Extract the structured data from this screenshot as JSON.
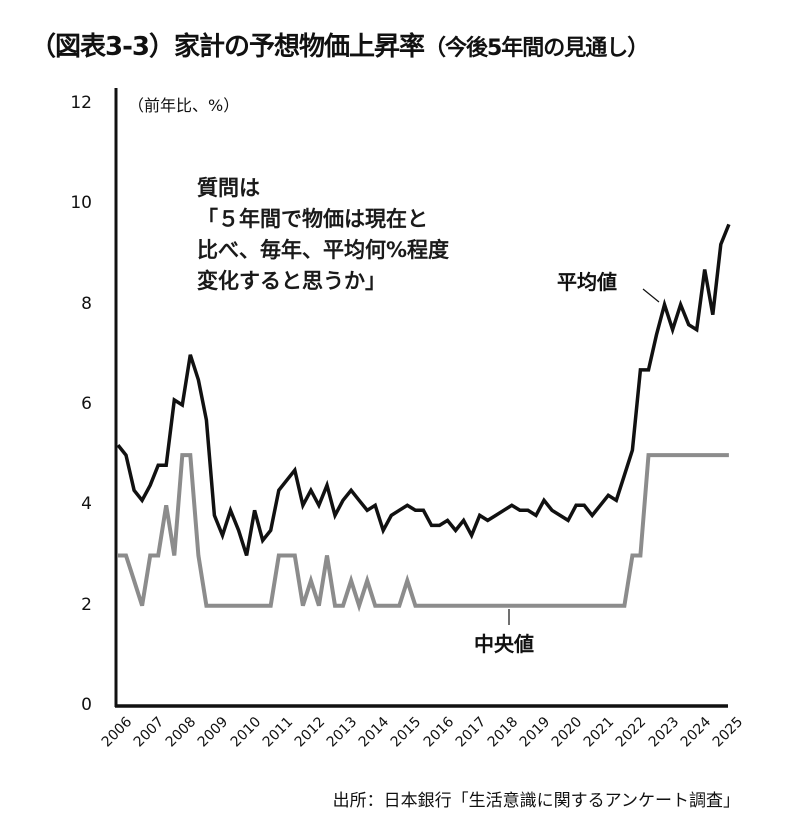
{
  "title": {
    "main": "（図表3-3）家計の予想物価上昇率",
    "sub": "（今後5年間の見通し）"
  },
  "unit_label": "（前年比、%）",
  "annotation": {
    "line1": "質問は",
    "line2": "「５年間で物価は現在と",
    "line3": "比べ、毎年、平均何%程度",
    "line4": "変化すると思うか」"
  },
  "labels": {
    "mean": "平均値",
    "median": "中央値"
  },
  "source": "出所：日本銀行「生活意識に関するアンケート調査」",
  "colors": {
    "mean": "#111111",
    "median": "#8c8c8c",
    "axis": "#111111"
  },
  "chart_data": {
    "type": "line",
    "title": "（図表3-3）家計の予想物価上昇率（今後5年間の見通し）",
    "xlabel": "",
    "ylabel": "（前年比、%）",
    "ylim": [
      0,
      12
    ],
    "yticks": [
      0,
      2,
      4,
      6,
      8,
      10,
      12
    ],
    "xticks": [
      "2006",
      "2007",
      "2008",
      "2009",
      "2010",
      "2011",
      "2012",
      "2013",
      "2014",
      "2015",
      "2016",
      "2017",
      "2018",
      "2019",
      "2020",
      "2021",
      "2022",
      "2023",
      "2024",
      "2025"
    ],
    "frequency": "quarterly",
    "x_start": 2006.0,
    "grid": false,
    "legend": "inline labels",
    "series": [
      {
        "name": "平均値",
        "values": [
          5.2,
          5.0,
          4.3,
          4.1,
          4.4,
          4.8,
          4.8,
          6.1,
          6.0,
          7.0,
          6.5,
          5.7,
          3.8,
          3.4,
          3.9,
          3.5,
          3.0,
          3.9,
          3.3,
          3.5,
          4.3,
          4.5,
          4.7,
          4.0,
          4.3,
          4.0,
          4.4,
          3.8,
          4.1,
          4.3,
          4.1,
          3.9,
          4.0,
          3.5,
          3.8,
          3.9,
          4.0,
          3.9,
          3.9,
          3.6,
          3.6,
          3.7,
          3.5,
          3.7,
          3.4,
          3.8,
          3.7,
          3.8,
          3.9,
          4.0,
          3.9,
          3.9,
          3.8,
          4.1,
          3.9,
          3.8,
          3.7,
          4.0,
          4.0,
          3.8,
          4.0,
          4.2,
          4.1,
          4.6,
          5.1,
          6.7,
          6.7,
          7.4,
          8.0,
          7.5,
          8.0,
          7.6,
          7.5,
          8.7,
          7.8,
          9.2,
          9.6
        ]
      },
      {
        "name": "中央値",
        "values": [
          3.0,
          3.0,
          2.5,
          2.0,
          3.0,
          3.0,
          4.0,
          3.0,
          5.0,
          5.0,
          3.0,
          2.0,
          2.0,
          2.0,
          2.0,
          2.0,
          2.0,
          2.0,
          2.0,
          2.0,
          3.0,
          3.0,
          3.0,
          2.0,
          2.5,
          2.0,
          3.0,
          2.0,
          2.0,
          2.5,
          2.0,
          2.5,
          2.0,
          2.0,
          2.0,
          2.0,
          2.5,
          2.0,
          2.0,
          2.0,
          2.0,
          2.0,
          2.0,
          2.0,
          2.0,
          2.0,
          2.0,
          2.0,
          2.0,
          2.0,
          2.0,
          2.0,
          2.0,
          2.0,
          2.0,
          2.0,
          2.0,
          2.0,
          2.0,
          2.0,
          2.0,
          2.0,
          2.0,
          2.0,
          3.0,
          3.0,
          5.0,
          5.0,
          5.0,
          5.0,
          5.0,
          5.0,
          5.0,
          5.0,
          5.0,
          5.0,
          5.0
        ]
      }
    ]
  }
}
